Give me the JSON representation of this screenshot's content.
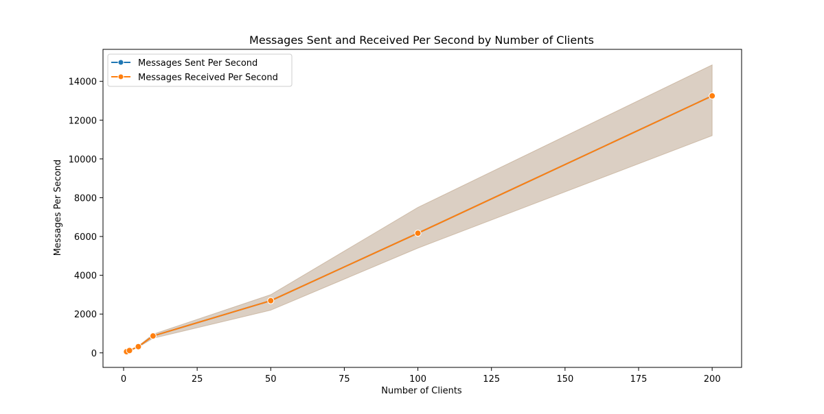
{
  "chart_data": {
    "type": "line",
    "title": "Messages Sent and Received Per Second by Number of Clients",
    "xlabel": "Number of Clients",
    "ylabel": "Messages Per Second",
    "xlim": [
      -7,
      210
    ],
    "ylim": [
      -750,
      15650
    ],
    "x_ticks": [
      0,
      25,
      50,
      75,
      100,
      125,
      150,
      175,
      200
    ],
    "y_ticks": [
      0,
      2000,
      4000,
      6000,
      8000,
      10000,
      12000,
      14000
    ],
    "grid": false,
    "legend_position": "top-left",
    "x": [
      1,
      2,
      5,
      10,
      50,
      100,
      200
    ],
    "series": [
      {
        "name": "Messages Sent Per Second",
        "color": "#1f77b4",
        "values": [
          60,
          120,
          320,
          870,
          2690,
          6170,
          13250
        ],
        "band_low": [
          55,
          110,
          290,
          750,
          2200,
          5400,
          11200
        ],
        "band_high": [
          65,
          130,
          350,
          960,
          3000,
          7500,
          14850
        ]
      },
      {
        "name": "Messages Received Per Second",
        "color": "#ff7f0e",
        "values": [
          60,
          120,
          320,
          870,
          2690,
          6170,
          13250
        ],
        "band_low": [
          55,
          110,
          290,
          750,
          2200,
          5400,
          11200
        ],
        "band_high": [
          65,
          130,
          350,
          960,
          3000,
          7500,
          14850
        ]
      }
    ]
  }
}
